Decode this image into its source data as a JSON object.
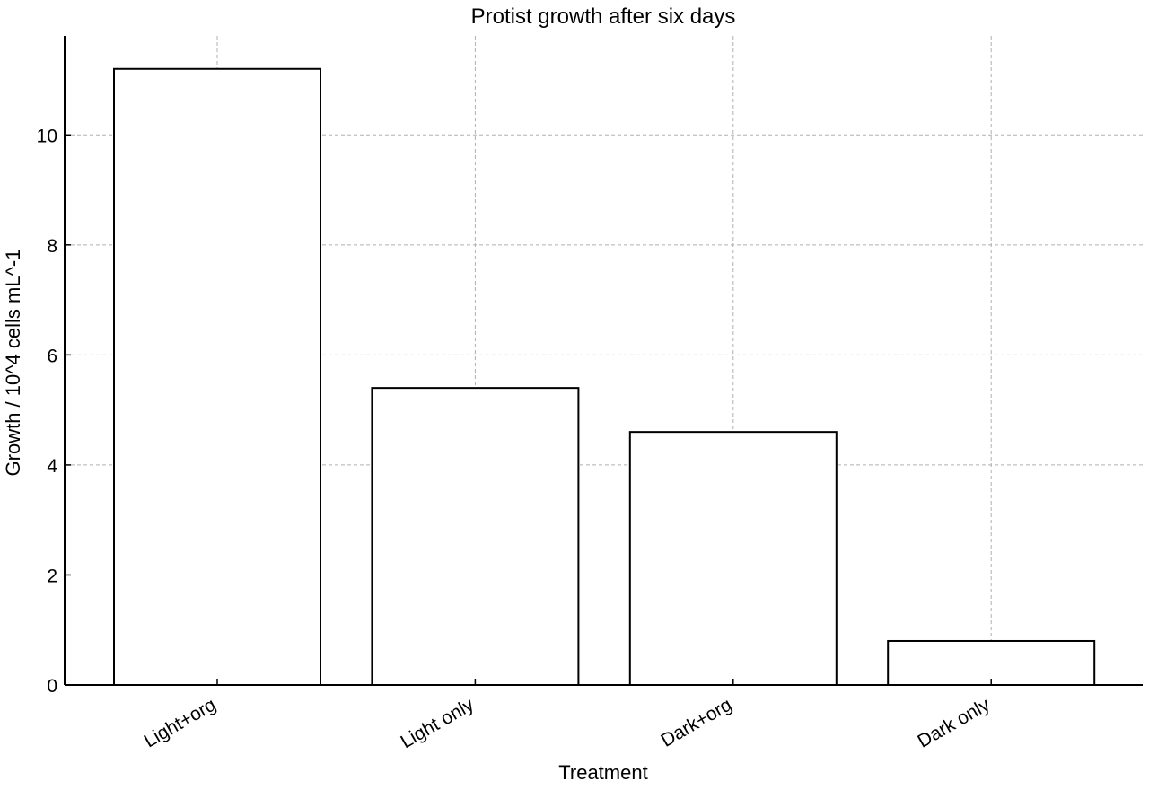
{
  "chart_data": {
    "type": "bar",
    "title": "Protist growth after six days",
    "xlabel": "Treatment",
    "ylabel": "Growth / 10^4 cells mL^-1",
    "categories": [
      "Light+org",
      "Light only",
      "Dark+org",
      "Dark only"
    ],
    "values": [
      11.2,
      5.4,
      4.6,
      0.8
    ],
    "ylim": [
      0,
      11.8
    ],
    "yticks": [
      0,
      2,
      4,
      6,
      8,
      10
    ],
    "grid": true,
    "legend": "none",
    "bar_fill": "#ffffff",
    "bar_edge": "#000000"
  }
}
